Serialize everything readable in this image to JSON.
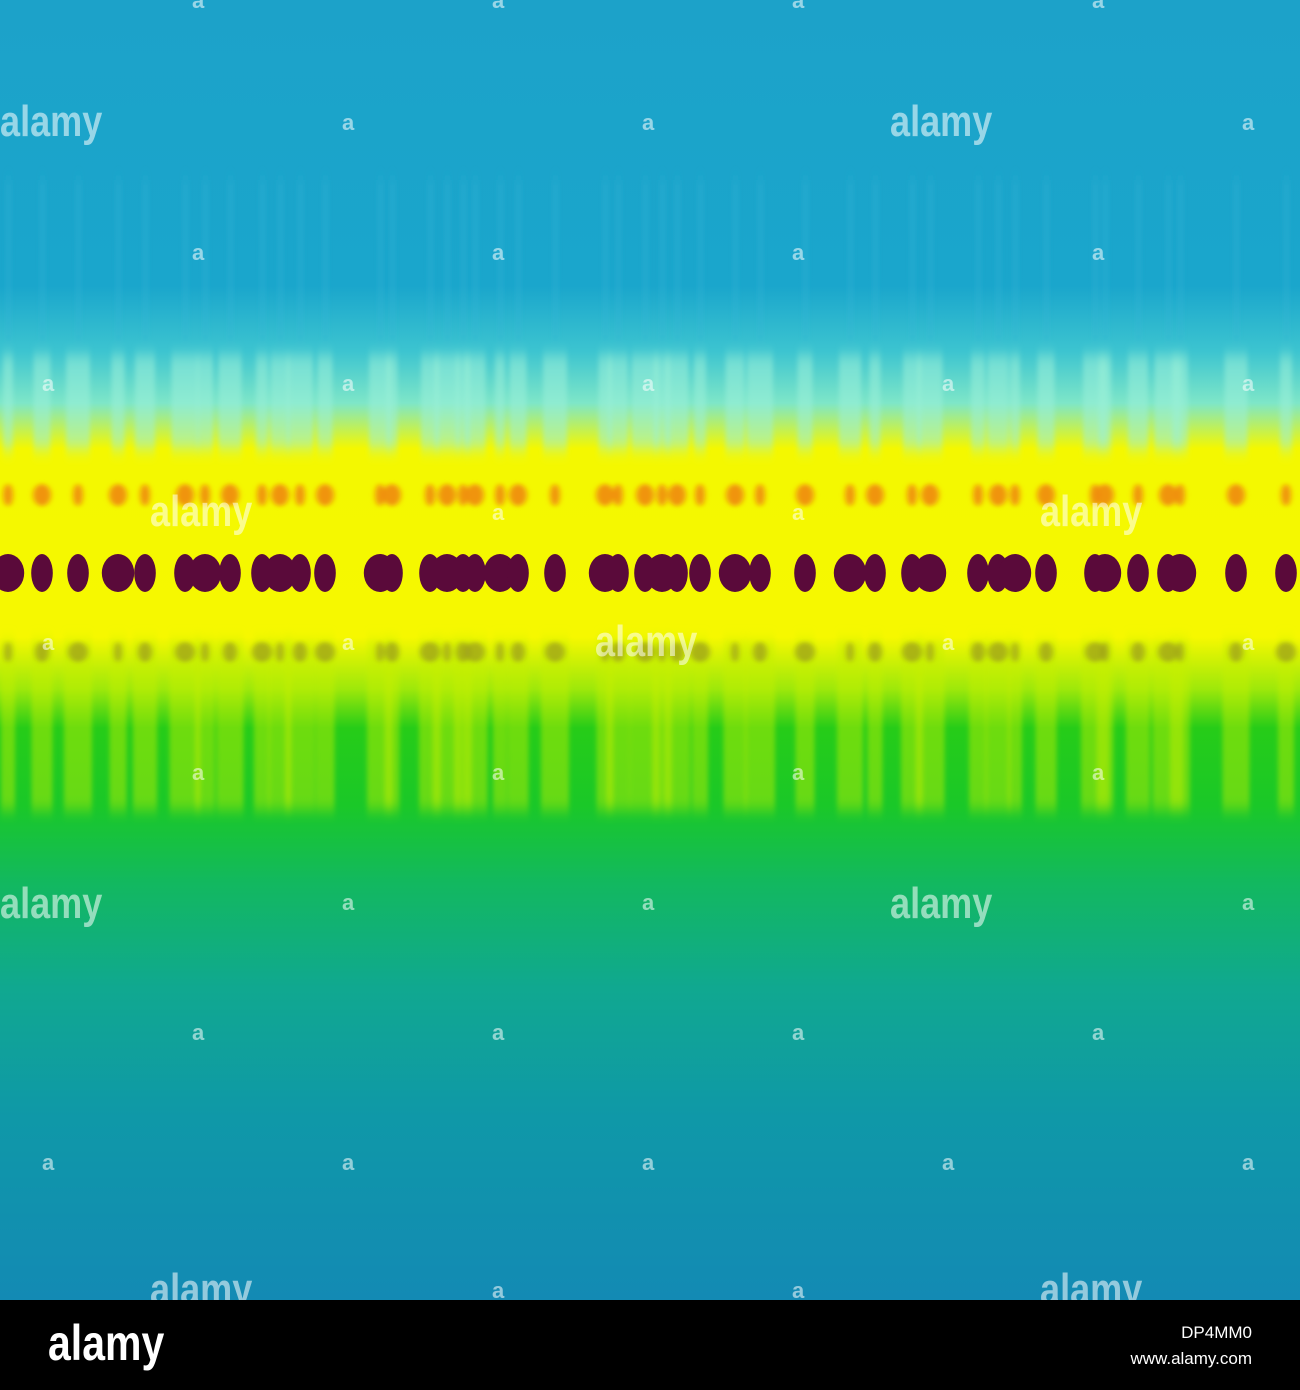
{
  "watermark": {
    "word": "alamy",
    "letter": "a"
  },
  "footer": {
    "logo": "alamy",
    "image_id": "DP4MM0",
    "site": "www.alamy.com"
  },
  "colors": {
    "top_blue": "#1aa4c8",
    "cyan_band": "#5ed6d4",
    "yellow_band": "#f8f800",
    "orange_spot": "#f08a10",
    "dark_band": "#5a0a3a",
    "green_band": "#22cc18",
    "bottom_teal": "#0f93a8"
  },
  "icons": {
    "footer_brand": "alamy-logo"
  }
}
